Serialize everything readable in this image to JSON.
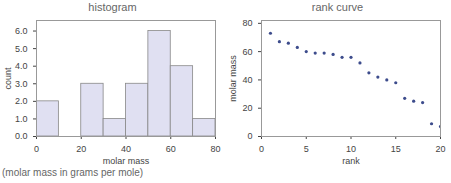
{
  "chart_data": [
    {
      "type": "histogram",
      "title": "histogram",
      "x_label": "molar mass",
      "y_label": "count",
      "bins": [
        0,
        10,
        20,
        30,
        40,
        50,
        60,
        70,
        80
      ],
      "values": [
        2,
        0,
        3,
        1,
        3,
        6,
        4,
        1
      ],
      "color": "#e0e0f2",
      "xlim": [
        0,
        80
      ],
      "xticks": [
        0,
        20,
        40,
        60,
        80
      ],
      "ylim": [
        0,
        6.6
      ],
      "yticks": [
        0,
        1,
        2,
        3,
        4,
        5,
        6
      ]
    },
    {
      "type": "scatter",
      "title": "rank curve",
      "x_label": "rank",
      "y_label": "molar mass",
      "x": [
        1,
        2,
        3,
        4,
        5,
        6,
        7,
        8,
        9,
        10,
        11,
        12,
        13,
        14,
        15,
        16,
        17,
        18,
        19,
        20
      ],
      "values": [
        73,
        67,
        66,
        63,
        60,
        59,
        59,
        58,
        56,
        56,
        52,
        45,
        42,
        40,
        38,
        27,
        25,
        24,
        9,
        7
      ],
      "color": "#3d4c8c",
      "xlim": [
        0,
        20
      ],
      "xticks": [
        0,
        5,
        10,
        15,
        20
      ],
      "ylim": [
        0,
        82
      ],
      "yticks": [
        0,
        20,
        40,
        60,
        80
      ]
    }
  ],
  "caption": "(molar mass in grams per mole)"
}
